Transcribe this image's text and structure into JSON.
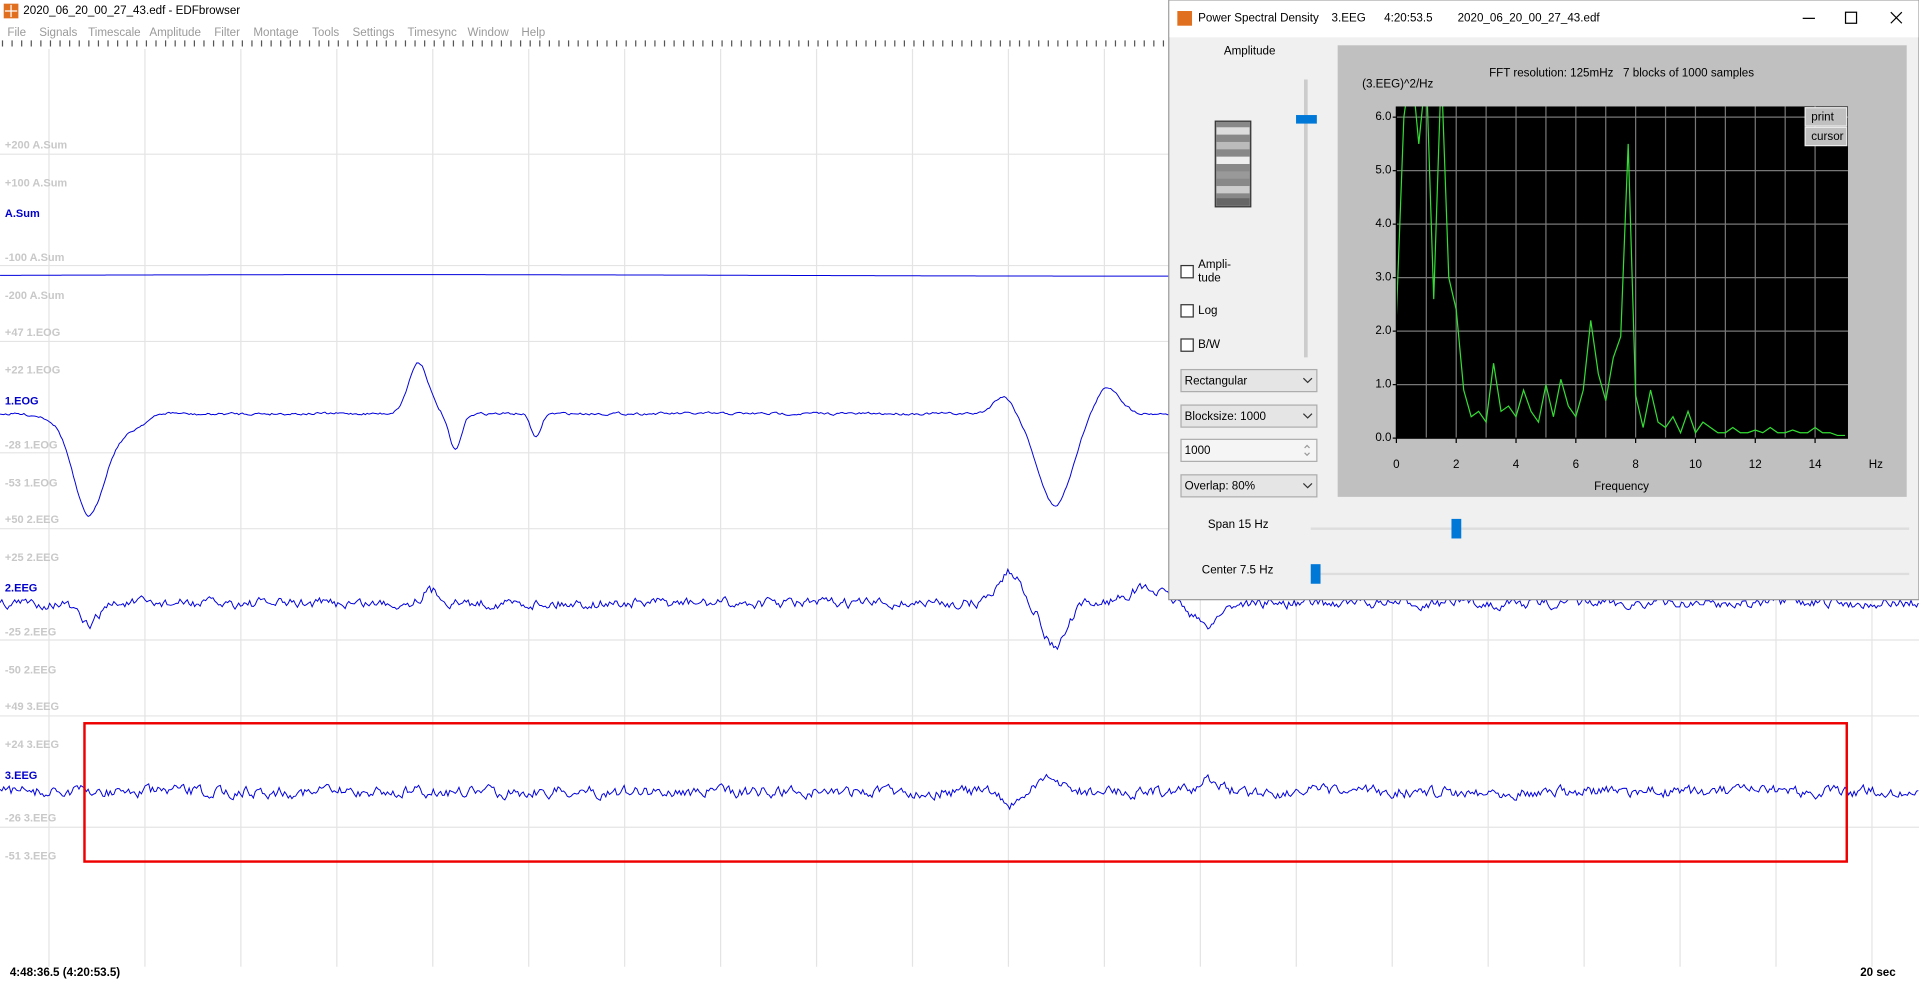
{
  "main_window": {
    "title": "2020_06_20_00_27_43.edf - EDFbrowser",
    "menu": [
      "File",
      "Signals",
      "Timescale",
      "Amplitude",
      "Filter",
      "Montage",
      "Tools",
      "Settings",
      "Timesync",
      "Window",
      "Help"
    ],
    "signals": [
      {
        "name": "A.Sum",
        "scale": [
          "+200 A.Sum",
          "+100 A.Sum",
          "-100 A.Sum",
          "-200 A.Sum"
        ]
      },
      {
        "name": "1.EOG",
        "scale": [
          "+47 1.EOG",
          "+22 1.EOG",
          "-28 1.EOG",
          "-53 1.EOG"
        ]
      },
      {
        "name": "2.EEG",
        "scale": [
          "+50 2.EEG",
          "+25 2.EEG",
          "-25 2.EEG",
          "-50 2.EEG"
        ]
      },
      {
        "name": "3.EEG",
        "scale": [
          "+49 3.EEG",
          "+24 3.EEG",
          "-26 3.EEG",
          "-51 3.EEG"
        ]
      }
    ],
    "cursor_time": "4:48:36.5 (4:20:53.5)",
    "timescale": "20 sec"
  },
  "psd_window": {
    "title": "Power Spectral Density",
    "signal": "3.EEG",
    "time": "4:20:53.5",
    "file": "2020_06_20_00_27_43.edf",
    "amplitude": "Amplitude",
    "checkboxes": [
      [
        "Ampli-",
        "tude"
      ],
      [
        "Log"
      ],
      [
        "B/W"
      ]
    ],
    "window_function": "Rectangular",
    "blocksize": "Blocksize: 1000",
    "blocksize_input": "1000",
    "overlap": "Overlap: 80%",
    "buttons": [
      "print",
      "cursor"
    ],
    "span": "Span 15 Hz",
    "center": "Center 7.5 Hz"
  },
  "chart_data": {
    "type": "line",
    "title": "FFT resolution: 125mHz   7 blocks of 1000 samples",
    "y_label": "(3.EEG)^2/Hz",
    "x_label": "Frequency",
    "x_unit": "Hz",
    "color": "#33dd33",
    "xlim": [
      0,
      15.1
    ],
    "ylim": [
      0,
      6.2
    ],
    "xticks": [
      0,
      2,
      4,
      6,
      8,
      10,
      12,
      14
    ],
    "x_minor_ticks": [
      1,
      3,
      5,
      7,
      9,
      11,
      13
    ],
    "yticks": [
      {
        "value": 0,
        "label": "0.0"
      },
      {
        "value": 1,
        "label": "1.0"
      },
      {
        "value": 2,
        "label": "2.0"
      },
      {
        "value": 3,
        "label": "3.0"
      },
      {
        "value": 4,
        "label": "4.0"
      },
      {
        "value": 5,
        "label": "5.0"
      },
      {
        "value": 6,
        "label": "6.0"
      }
    ],
    "grid": true,
    "x": [
      0,
      0.25,
      0.5,
      0.75,
      1,
      1.25,
      1.5,
      1.75,
      2,
      2.25,
      2.5,
      2.75,
      3,
      3.25,
      3.5,
      3.75,
      4,
      4.25,
      4.5,
      4.75,
      5,
      5.25,
      5.5,
      5.75,
      6,
      6.25,
      6.5,
      6.75,
      7,
      7.25,
      7.5,
      7.75,
      8,
      8.25,
      8.5,
      8.75,
      9,
      9.25,
      9.5,
      9.75,
      10,
      10.25,
      10.5,
      10.75,
      11,
      11.25,
      11.5,
      11.75,
      12,
      12.25,
      12.5,
      12.75,
      13,
      13.25,
      13.5,
      13.75,
      14,
      14.25,
      14.5,
      14.75,
      15
    ],
    "values": [
      2.3,
      6.0,
      7.0,
      5.5,
      6.9,
      2.6,
      6.9,
      3.0,
      2.4,
      0.9,
      0.4,
      0.5,
      0.3,
      1.4,
      0.5,
      0.6,
      0.4,
      0.9,
      0.5,
      0.3,
      1.0,
      0.4,
      1.1,
      0.6,
      0.4,
      0.9,
      2.2,
      1.2,
      0.7,
      1.5,
      1.9,
      5.5,
      0.8,
      0.2,
      0.9,
      0.3,
      0.2,
      0.4,
      0.1,
      0.5,
      0.1,
      0.3,
      0.2,
      0.1,
      0.1,
      0.2,
      0.1,
      0.1,
      0.15,
      0.1,
      0.2,
      0.1,
      0.1,
      0.15,
      0.1,
      0.1,
      0.2,
      0.1,
      0.1,
      0.05,
      0.05
    ]
  }
}
